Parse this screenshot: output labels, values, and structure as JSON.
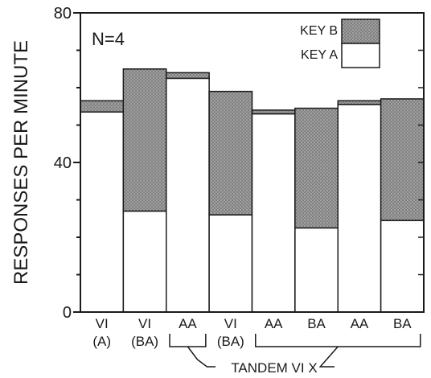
{
  "chart_data": {
    "type": "bar",
    "stacked": true,
    "annotation": "N=4",
    "ylabel": "RESPONSES PER MINUTE",
    "xlabel": "",
    "ylim": [
      0,
      80
    ],
    "yticks": [
      0,
      40,
      80
    ],
    "grid": false,
    "legend_position": "top-right",
    "categories": [
      [
        "VI",
        "(A)"
      ],
      [
        "VI",
        "(BA)"
      ],
      [
        "AA",
        ""
      ],
      [
        "VI",
        "(BA)"
      ],
      [
        "AA",
        ""
      ],
      [
        "BA",
        ""
      ],
      [
        "AA",
        ""
      ],
      [
        "BA",
        ""
      ]
    ],
    "series": [
      {
        "name": "KEY A",
        "values": [
          53.5,
          27,
          62.5,
          26,
          53,
          22.5,
          55.5,
          24.5
        ]
      },
      {
        "name": "KEY B",
        "values": [
          3,
          38,
          1.5,
          33,
          1,
          32,
          1,
          32.5
        ]
      }
    ],
    "brackets": [
      {
        "from": 2,
        "to": 2,
        "label": ""
      },
      {
        "from": 4,
        "to": 7,
        "label": ""
      }
    ],
    "bracket_label": "TANDEM VI X",
    "colors": {
      "key_a": "#ffffff",
      "key_b": "#8a8a8a",
      "ink": "#1a1a1a"
    }
  }
}
